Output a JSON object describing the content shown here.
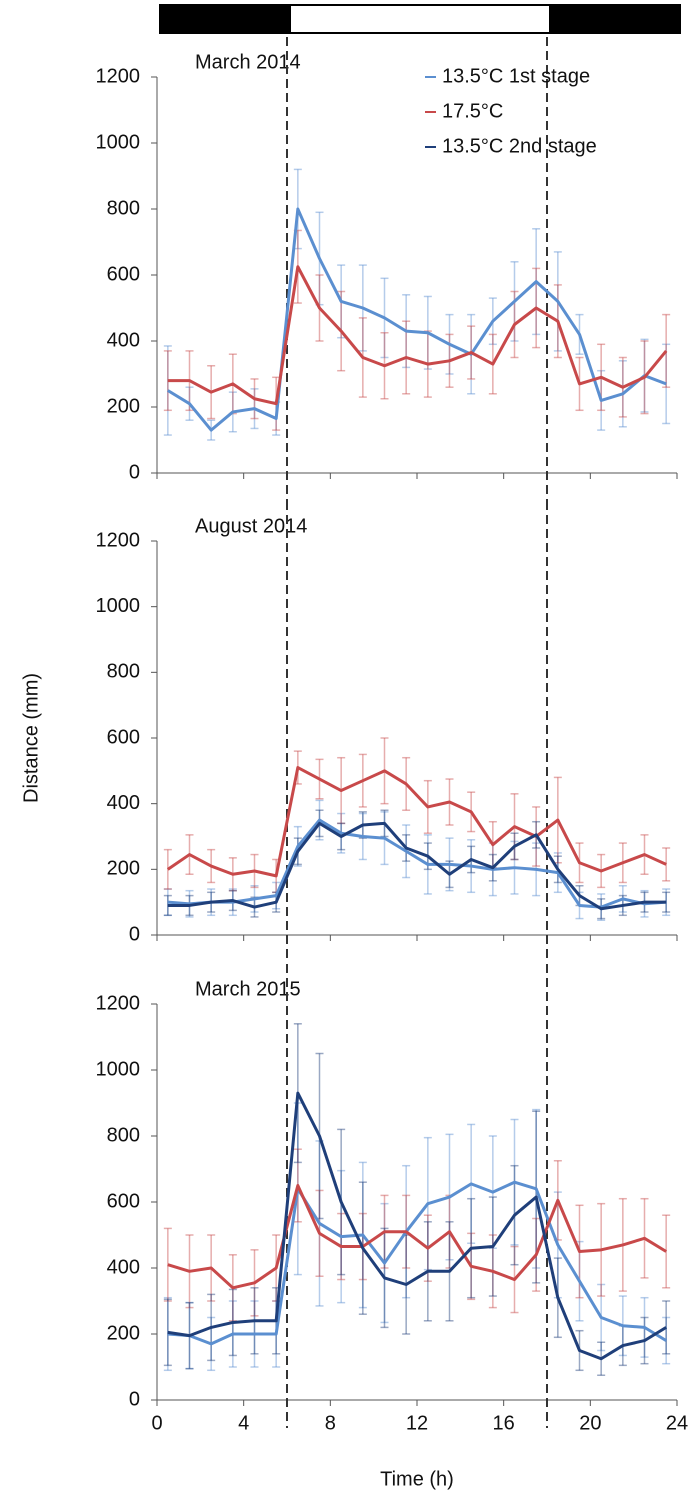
{
  "legend": [
    {
      "name": "13.5°C 1st stage",
      "color": "#5b8fd0"
    },
    {
      "name": "17.5°C",
      "color": "#c8494a"
    },
    {
      "name": "13.5°C 2nd stage",
      "color": "#1f3f7a"
    }
  ],
  "chart_data": [
    {
      "type": "line",
      "title": "March 2014",
      "x": [
        0.5,
        1.5,
        2.5,
        3.5,
        4.5,
        5.5,
        6.5,
        7.5,
        8.5,
        9.5,
        10.5,
        11.5,
        12.5,
        13.5,
        14.5,
        15.5,
        16.5,
        17.5,
        18.5,
        19.5,
        20.5,
        21.5,
        22.5,
        23.5
      ],
      "xlim": [
        0,
        24
      ],
      "xticks": [
        0,
        4,
        8,
        12,
        16,
        20,
        24
      ],
      "ylim": [
        0,
        1200
      ],
      "yticks": [
        0,
        200,
        400,
        600,
        800,
        1000,
        1200
      ],
      "vlines": [
        6,
        18
      ],
      "series": [
        {
          "color": "#5b8fd0",
          "values": [
            250,
            210,
            130,
            185,
            195,
            165,
            800,
            650,
            520,
            500,
            470,
            430,
            425,
            390,
            360,
            460,
            520,
            580,
            520,
            420,
            220,
            240,
            295,
            270
          ],
          "errors": [
            135,
            50,
            30,
            60,
            60,
            50,
            120,
            140,
            110,
            130,
            120,
            110,
            110,
            90,
            120,
            70,
            120,
            160,
            150,
            60,
            90,
            100,
            110,
            120
          ]
        },
        {
          "color": "#c8494a",
          "values": [
            280,
            280,
            245,
            270,
            225,
            210,
            625,
            500,
            430,
            350,
            325,
            350,
            330,
            340,
            365,
            330,
            450,
            500,
            460,
            270,
            290,
            260,
            290,
            370
          ],
          "errors": [
            90,
            90,
            80,
            90,
            60,
            80,
            110,
            100,
            120,
            120,
            100,
            110,
            100,
            80,
            80,
            90,
            100,
            120,
            110,
            80,
            100,
            90,
            110,
            110
          ]
        }
      ]
    },
    {
      "type": "line",
      "title": "August 2014",
      "ylabel": "Distance (mm)",
      "x": [
        0.5,
        1.5,
        2.5,
        3.5,
        4.5,
        5.5,
        6.5,
        7.5,
        8.5,
        9.5,
        10.5,
        11.5,
        12.5,
        13.5,
        14.5,
        15.5,
        16.5,
        17.5,
        18.5,
        19.5,
        20.5,
        21.5,
        22.5,
        23.5
      ],
      "xlim": [
        0,
        24
      ],
      "xticks": [
        0,
        4,
        8,
        12,
        16,
        20,
        24
      ],
      "ylim": [
        0,
        1200
      ],
      "yticks": [
        0,
        200,
        400,
        600,
        800,
        1000,
        1200
      ],
      "vlines": [
        6,
        18
      ],
      "series": [
        {
          "color": "#5b8fd0",
          "values": [
            100,
            95,
            100,
            100,
            110,
            120,
            270,
            350,
            310,
            300,
            295,
            255,
            215,
            215,
            210,
            200,
            205,
            200,
            190,
            90,
            85,
            110,
            95,
            100
          ],
          "errors": [
            40,
            40,
            40,
            40,
            40,
            40,
            60,
            60,
            60,
            70,
            80,
            80,
            90,
            80,
            80,
            80,
            80,
            80,
            60,
            40,
            40,
            40,
            40,
            40
          ]
        },
        {
          "color": "#c8494a",
          "values": [
            200,
            245,
            210,
            185,
            195,
            180,
            510,
            475,
            440,
            470,
            500,
            460,
            390,
            405,
            375,
            275,
            330,
            300,
            350,
            220,
            195,
            220,
            245,
            215
          ],
          "errors": [
            60,
            60,
            50,
            50,
            50,
            50,
            50,
            60,
            100,
            80,
            100,
            80,
            80,
            70,
            60,
            70,
            100,
            90,
            130,
            60,
            50,
            60,
            60,
            50
          ]
        },
        {
          "color": "#1f3f7a",
          "values": [
            90,
            90,
            100,
            105,
            85,
            100,
            255,
            340,
            300,
            335,
            340,
            265,
            240,
            185,
            230,
            205,
            270,
            305,
            200,
            120,
            80,
            90,
            100,
            100
          ],
          "errors": [
            30,
            30,
            30,
            30,
            30,
            30,
            40,
            40,
            40,
            40,
            40,
            40,
            40,
            40,
            40,
            40,
            40,
            40,
            40,
            30,
            30,
            30,
            30,
            30
          ]
        }
      ]
    },
    {
      "type": "line",
      "title": "March 2015",
      "xlabel": "Time (h)",
      "x": [
        0.5,
        1.5,
        2.5,
        3.5,
        4.5,
        5.5,
        6.5,
        7.5,
        8.5,
        9.5,
        10.5,
        11.5,
        12.5,
        13.5,
        14.5,
        15.5,
        16.5,
        17.5,
        18.5,
        19.5,
        20.5,
        21.5,
        22.5,
        23.5
      ],
      "xlim": [
        0,
        24
      ],
      "xticks": [
        0,
        4,
        8,
        12,
        16,
        20,
        24
      ],
      "ylim": [
        0,
        1200
      ],
      "yticks": [
        0,
        200,
        400,
        600,
        800,
        1000,
        1200
      ],
      "vlines": [
        6,
        18
      ],
      "series": [
        {
          "color": "#5b8fd0",
          "values": [
            200,
            195,
            170,
            200,
            200,
            200,
            640,
            535,
            495,
            500,
            415,
            510,
            595,
            615,
            655,
            630,
            660,
            640,
            470,
            360,
            250,
            225,
            220,
            180
          ],
          "errors": [
            110,
            100,
            80,
            100,
            100,
            100,
            260,
            250,
            200,
            220,
            180,
            200,
            200,
            190,
            180,
            170,
            190,
            240,
            160,
            120,
            100,
            90,
            90,
            70
          ]
        },
        {
          "color": "#c8494a",
          "values": [
            410,
            390,
            400,
            340,
            355,
            400,
            650,
            505,
            465,
            465,
            510,
            510,
            460,
            510,
            405,
            390,
            365,
            440,
            605,
            450,
            455,
            470,
            490,
            450
          ],
          "errors": [
            110,
            110,
            100,
            100,
            100,
            100,
            110,
            130,
            100,
            100,
            110,
            110,
            100,
            110,
            100,
            110,
            100,
            110,
            120,
            140,
            140,
            140,
            120,
            110
          ]
        },
        {
          "color": "#1f3f7a",
          "values": [
            205,
            195,
            220,
            235,
            240,
            240,
            930,
            800,
            600,
            460,
            370,
            350,
            390,
            390,
            460,
            465,
            560,
            615,
            310,
            150,
            125,
            165,
            180,
            220
          ],
          "errors": [
            100,
            100,
            100,
            100,
            100,
            100,
            210,
            250,
            220,
            200,
            150,
            150,
            150,
            150,
            150,
            150,
            150,
            260,
            120,
            60,
            50,
            60,
            70,
            80
          ]
        }
      ]
    }
  ]
}
